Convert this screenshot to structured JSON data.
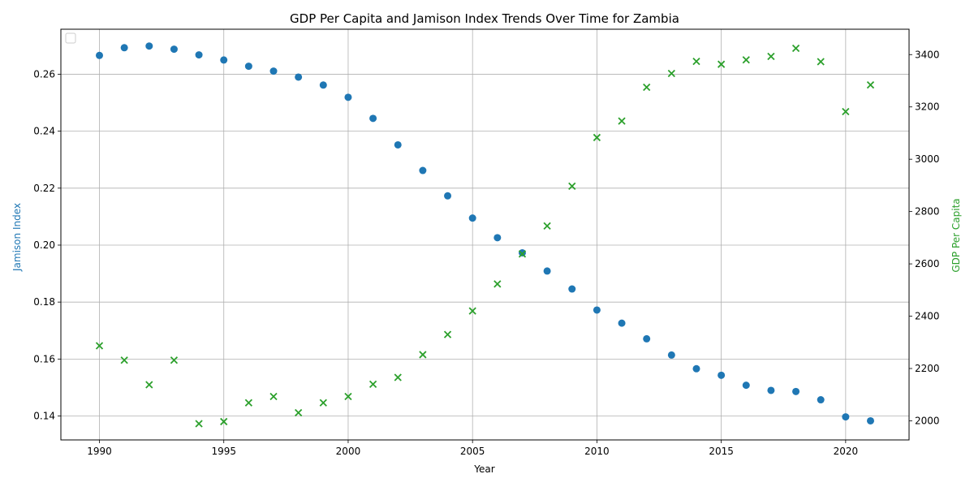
{
  "chart_data": {
    "type": "scatter",
    "title": "GDP Per Capita and Jamison Index Trends Over Time for Zambia",
    "xlabel": "Year",
    "ylabel_left": "Jamison Index",
    "ylabel_right": "GDP Per Capita",
    "xlim": [
      1988.45,
      2022.55
    ],
    "ylim_left": [
      0.1316,
      0.2758
    ],
    "ylim_right": [
      1927,
      3497
    ],
    "x_ticks": [
      1990,
      1995,
      2000,
      2005,
      2010,
      2015,
      2020
    ],
    "y_left_ticks": [
      0.14,
      0.16,
      0.18,
      0.2,
      0.22,
      0.24,
      0.26
    ],
    "y_left_tick_labels": [
      "0.14",
      "0.16",
      "0.18",
      "0.20",
      "0.22",
      "0.24",
      "0.26"
    ],
    "y_right_ticks": [
      2000,
      2200,
      2400,
      2600,
      2800,
      3000,
      3200,
      3400
    ],
    "y_right_tick_labels": [
      "2000",
      "2200",
      "2400",
      "2600",
      "2800",
      "3000",
      "3200",
      "3400"
    ],
    "grid": true,
    "legend_position": "top-left",
    "x": [
      1990,
      1991,
      1992,
      1993,
      1994,
      1995,
      1996,
      1997,
      1998,
      1999,
      2000,
      2001,
      2002,
      2003,
      2004,
      2005,
      2006,
      2007,
      2008,
      2009,
      2010,
      2011,
      2012,
      2013,
      2014,
      2015,
      2016,
      2017,
      2018,
      2019,
      2020,
      2021
    ],
    "series": [
      {
        "axis": "left",
        "marker": "circle",
        "color": "#1f77b4",
        "values": [
          0.2666,
          0.2693,
          0.2699,
          0.2688,
          0.2668,
          0.265,
          0.2628,
          0.2611,
          0.259,
          0.2562,
          0.2519,
          0.2445,
          0.2352,
          0.2262,
          0.2173,
          0.2095,
          0.2026,
          0.1973,
          0.1909,
          0.1846,
          0.1772,
          0.1726,
          0.1671,
          0.1614,
          0.1566,
          0.1543,
          0.1508,
          0.149,
          0.1486,
          0.1457,
          0.1397,
          0.1383
        ]
      },
      {
        "axis": "right",
        "marker": "x",
        "color": "#2ca02c",
        "values": [
          2287,
          2232,
          2138,
          2232,
          1989,
          1997,
          2069,
          2093,
          2031,
          2069,
          2093,
          2140,
          2166,
          2253,
          2330,
          2420,
          2523,
          2638,
          2745,
          2897,
          3083,
          3146,
          3275,
          3328,
          3374,
          3363,
          3380,
          3393,
          3424,
          3373,
          3182,
          3284
        ]
      }
    ]
  }
}
